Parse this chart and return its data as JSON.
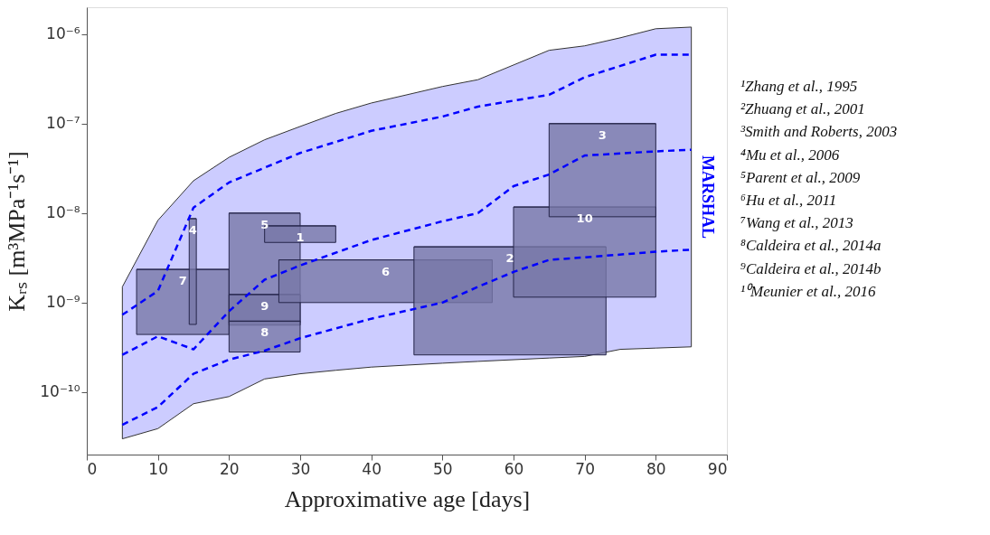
{
  "chart_data": {
    "type": "line",
    "xlabel": "Approximative age [days]",
    "ylabel": "Kᵣₛ [m³MPa⁻¹s⁻¹]",
    "log": "y",
    "grid": false,
    "legend": false,
    "line_style": "dashed",
    "marker": "none",
    "xlim": [
      0,
      90
    ],
    "xticks": [
      0,
      10,
      20,
      30,
      40,
      50,
      60,
      70,
      80,
      90
    ],
    "ylim": [
      2e-11,
      2e-06
    ],
    "yticks": [
      {
        "value": 1e-10,
        "label": "10⁻¹⁰"
      },
      {
        "value": 1e-09,
        "label": "10⁻⁹"
      },
      {
        "value": 1e-08,
        "label": "10⁻⁸"
      },
      {
        "value": 1e-07,
        "label": "10⁻⁷"
      },
      {
        "value": 1e-06,
        "label": "10⁻⁶"
      }
    ],
    "series": [
      {
        "type": "area",
        "color": "#ccccff",
        "x": [
          5,
          10,
          15,
          20,
          25,
          30,
          35,
          40,
          45,
          50,
          55,
          65,
          70,
          75,
          80,
          85
        ],
        "values": [
          null,
          null,
          null,
          null,
          null,
          null,
          null,
          null,
          null,
          null,
          null,
          null,
          null,
          null,
          null,
          null
        ],
        "upper": [
          1.5e-09,
          8.3e-09,
          2.3e-08,
          4.2e-08,
          6.6e-08,
          9.3e-08,
          1.3e-07,
          1.7e-07,
          2.1e-07,
          2.6e-07,
          3.1e-07,
          6.6e-07,
          7.4e-07,
          9.1e-07,
          1.15e-06,
          1.2e-06
        ],
        "lower": [
          3e-11,
          3.9e-11,
          7.4e-11,
          8.9e-11,
          1.4e-10,
          1.6e-10,
          1.75e-10,
          1.9e-10,
          2e-10,
          2.1e-10,
          2.2e-10,
          2.4e-10,
          2.5e-10,
          3e-10,
          3.1e-10,
          3.2e-10
        ]
      },
      {
        "color": "#0000ff",
        "x": [
          5,
          10,
          15,
          20,
          30,
          40,
          50,
          55,
          65,
          70,
          80,
          85
        ],
        "values": [
          7.3e-10,
          1.35e-09,
          1.15e-08,
          2.2e-08,
          4.7e-08,
          8.3e-08,
          1.2e-07,
          1.55e-07,
          2.1e-07,
          3.3e-07,
          5.9e-07,
          5.9e-07
        ]
      },
      {
        "color": "#0000ff",
        "x": [
          5,
          10,
          15,
          20,
          25,
          30,
          40,
          50,
          55,
          60,
          65,
          70,
          80,
          85
        ],
        "values": [
          2.6e-10,
          4.2e-10,
          3e-10,
          8e-10,
          1.8e-09,
          2.6e-09,
          5e-09,
          8.1e-09,
          1e-08,
          2e-08,
          2.7e-08,
          4.4e-08,
          4.9e-08,
          5.1e-08
        ]
      },
      {
        "color": "#0000ff",
        "x": [
          5,
          10,
          15,
          20,
          25,
          30,
          40,
          50,
          55,
          60,
          65,
          70,
          80,
          85
        ],
        "values": [
          4.3e-11,
          6.8e-11,
          1.6e-10,
          2.3e-10,
          2.9e-10,
          4e-10,
          6.6e-10,
          1e-09,
          1.5e-09,
          2.2e-09,
          3e-09,
          3.2e-09,
          3.7e-09,
          3.9e-09
        ]
      },
      {
        "type": "bar",
        "name": "7",
        "color": "#7878a8",
        "x": [
          13.5
        ],
        "xerrors": [
          [
            7,
            20
          ]
        ],
        "base": [
          4.4e-10
        ],
        "values": [
          1.91e-09
        ]
      },
      {
        "type": "bar",
        "name": "4",
        "color": "#7878a8",
        "x": [
          14.9
        ],
        "xerrors": [
          [
            14.4,
            15.4
          ]
        ],
        "base": [
          5.7e-10
        ],
        "values": [
          8.1e-09
        ]
      },
      {
        "type": "bar",
        "name": "5",
        "color": "#7878a8",
        "x": [
          25
        ],
        "xerrors": [
          [
            20,
            30
          ]
        ],
        "base": [
          6e-10
        ],
        "values": [
          9.4e-09
        ]
      },
      {
        "type": "bar",
        "name": "9",
        "color": "#7878a8",
        "x": [
          25
        ],
        "xerrors": [
          [
            20,
            30
          ]
        ],
        "base": [
          5.6e-10
        ],
        "values": [
          6.7e-10
        ]
      },
      {
        "type": "bar",
        "name": "8",
        "color": "#7878a8",
        "x": [
          25
        ],
        "xerrors": [
          [
            20,
            30
          ]
        ],
        "base": [
          2.8e-10
        ],
        "values": [
          3.4e-10
        ]
      },
      {
        "type": "bar",
        "name": "1",
        "color": "#7878a8",
        "x": [
          30
        ],
        "xerrors": [
          [
            25,
            35
          ]
        ],
        "base": [
          4.7e-09
        ],
        "values": [
          2.5e-09
        ]
      },
      {
        "type": "bar",
        "name": "6",
        "color": "#7878a8",
        "x": [
          42
        ],
        "xerrors": [
          [
            27,
            57
          ]
        ],
        "base": [
          1e-09
        ],
        "values": [
          2e-09
        ]
      },
      {
        "type": "bar",
        "name": "2",
        "color": "#7878a8",
        "x": [
          59.5
        ],
        "xerrors": [
          [
            46,
            73
          ]
        ],
        "base": [
          2.6e-10
        ],
        "values": [
          3.94e-09
        ]
      },
      {
        "type": "bar",
        "name": "10",
        "color": "#7878a8",
        "x": [
          70
        ],
        "xerrors": [
          [
            60,
            80
          ]
        ],
        "base": [
          1.15e-09
        ],
        "values": [
          1.055e-08
        ]
      },
      {
        "type": "bar",
        "name": "3",
        "color": "#7878a8",
        "x": [
          72.5
        ],
        "xerrors": [
          [
            65,
            80
          ]
        ],
        "base": [
          9.1e-09
        ],
        "values": [
          9.09e-08
        ]
      }
    ],
    "annotations": [
      "MARSHAL",
      "¹Zhang et al., 1995",
      "²Zhuang et al., 2001",
      "³Smith and Roberts, 2003",
      "⁴Mu et al., 2006",
      "⁵Parent et al., 2009",
      "⁶Hu et al., 2011",
      "⁷Wang et al., 2013",
      "⁸Caldeira et al., 2014a",
      "⁹Caldeira et al., 2014b",
      "¹⁰Meunier et al., 2016"
    ]
  }
}
